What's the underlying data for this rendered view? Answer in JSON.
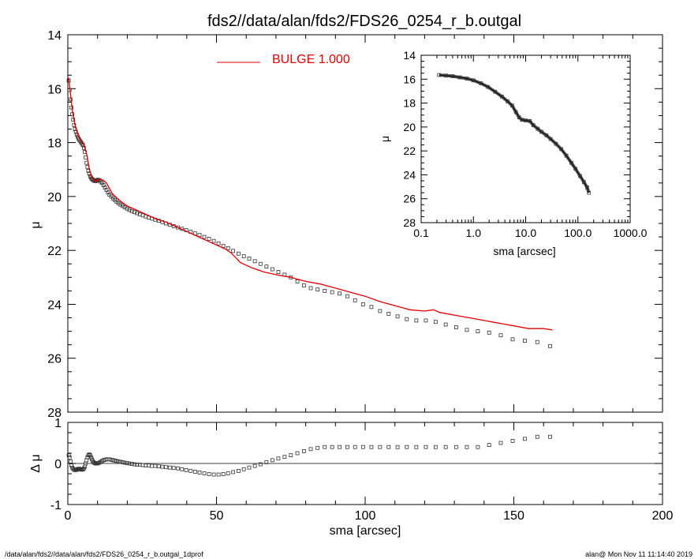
{
  "title": "fds2//data/alan/fds2/FDS26_0254_r_b.outgal",
  "footer": {
    "left": "/data/alan/fds2//data/alan/fds2/FDS26_0254_r_b.outgal_1dprof",
    "right": "alan@  Mon Nov 11 11:14:40 2019"
  },
  "colors": {
    "model": "#e00000",
    "data": "#000000",
    "residual": "#000000"
  },
  "chart_data": [
    {
      "id": "main",
      "type": "line",
      "title": "fds2//data/alan/fds2/FDS26_0254_r_b.outgal",
      "xlabel": "",
      "ylabel": "μ",
      "xlim": [
        0,
        200
      ],
      "ylim": [
        28,
        14
      ],
      "y_inverted": true,
      "xticks": [
        "",
        "",
        "",
        "",
        ""
      ],
      "yticks": [
        "14",
        "16",
        "18",
        "20",
        "22",
        "24",
        "26",
        "28"
      ],
      "ytick_values": [
        14,
        16,
        18,
        20,
        22,
        24,
        26,
        28
      ],
      "legend": [
        {
          "label": "BULGE  1.000",
          "color": "#e00000",
          "placement": "top-center"
        }
      ],
      "series": [
        {
          "name": "BULGE  1.000",
          "style": "line",
          "x": [
            0.3,
            0.8,
            1.5,
            2.5,
            3.5,
            4.5,
            5.5,
            6.5,
            7.0,
            7.5,
            8.0,
            8.5,
            9.0,
            9.5,
            10.0,
            11,
            12,
            13,
            14,
            15,
            16,
            18,
            20,
            22,
            24,
            26,
            28,
            30,
            33,
            36,
            40,
            45,
            50,
            53,
            55,
            58,
            62,
            66,
            70,
            75,
            80,
            85,
            90,
            95,
            100,
            105,
            110,
            115,
            120,
            123,
            125,
            130,
            135,
            140,
            145,
            150,
            155,
            160,
            163
          ],
          "y": [
            15.6,
            16.1,
            16.8,
            17.4,
            17.75,
            17.95,
            18.1,
            18.5,
            18.85,
            19.1,
            19.25,
            19.35,
            19.4,
            19.45,
            19.4,
            19.35,
            19.4,
            19.5,
            19.7,
            19.9,
            20.0,
            20.2,
            20.35,
            20.45,
            20.55,
            20.65,
            20.75,
            20.85,
            20.95,
            21.1,
            21.3,
            21.55,
            21.8,
            21.95,
            22.1,
            22.45,
            22.65,
            22.8,
            22.9,
            23.0,
            23.15,
            23.25,
            23.4,
            23.55,
            23.7,
            23.9,
            24.05,
            24.2,
            24.25,
            24.2,
            24.3,
            24.4,
            24.5,
            24.6,
            24.7,
            24.8,
            24.9,
            24.9,
            24.95
          ]
        },
        {
          "name": "",
          "style": "square-markers",
          "x": [
            0.3,
            0.6,
            0.9,
            1.2,
            1.5,
            1.8,
            2.1,
            2.4,
            2.7,
            3.0,
            3.3,
            3.6,
            3.9,
            4.2,
            4.5,
            4.8,
            5.1,
            5.4,
            5.7,
            6.0,
            6.3,
            6.6,
            6.9,
            7.2,
            7.5,
            7.8,
            8.1,
            8.4,
            8.7,
            9.0,
            9.3,
            9.6,
            9.9,
            10.2,
            10.6,
            11.0,
            11.5,
            12.0,
            12.5,
            13.0,
            13.5,
            14.0,
            14.6,
            15.2,
            15.8,
            16.4,
            17.0,
            17.7,
            18.4,
            19.1,
            19.9,
            20.7,
            21.5,
            22.4,
            23.3,
            24.2,
            25.2,
            26.2,
            27.2,
            28.3,
            29.4,
            30.6,
            31.8,
            33.0,
            34.3,
            35.6,
            37.0,
            38.4,
            39.8,
            41.3,
            42.8,
            44.3,
            45.9,
            47.5,
            49.1,
            50.7,
            52.3,
            53.9,
            55.6,
            57.4,
            59.2,
            61.0,
            62.9,
            64.8,
            66.8,
            68.8,
            70.8,
            72.9,
            75.0,
            77.2,
            79.4,
            81.7,
            84.0,
            86.4,
            88.9,
            91.4,
            94.0,
            96.6,
            99.3,
            102.1,
            105.0,
            107.9,
            110.9,
            114.0,
            117.2,
            120.4,
            123.7,
            127.1,
            130.6,
            134.2,
            137.9,
            141.7,
            145.6,
            149.6,
            153.7,
            157.9,
            162.2
          ],
          "y": [
            15.7,
            16.05,
            16.4,
            16.7,
            16.95,
            17.15,
            17.35,
            17.5,
            17.6,
            17.7,
            17.78,
            17.85,
            17.9,
            17.95,
            18.0,
            18.05,
            18.1,
            18.2,
            18.35,
            18.55,
            18.75,
            18.9,
            19.05,
            19.15,
            19.25,
            19.3,
            19.35,
            19.38,
            19.4,
            19.42,
            19.43,
            19.42,
            19.4,
            19.38,
            19.4,
            19.45,
            19.5,
            19.58,
            19.67,
            19.76,
            19.85,
            19.93,
            20.0,
            20.07,
            20.13,
            20.19,
            20.25,
            20.3,
            20.35,
            20.4,
            20.45,
            20.5,
            20.54,
            20.58,
            20.62,
            20.66,
            20.7,
            20.74,
            20.78,
            20.82,
            20.86,
            20.9,
            20.95,
            21.0,
            21.05,
            21.1,
            21.15,
            21.2,
            21.25,
            21.31,
            21.37,
            21.43,
            21.5,
            21.57,
            21.65,
            21.74,
            21.83,
            21.92,
            22.02,
            22.12,
            22.22,
            22.3,
            22.4,
            22.5,
            22.6,
            22.7,
            22.8,
            22.9,
            23.0,
            23.15,
            23.3,
            23.4,
            23.45,
            23.5,
            23.55,
            23.6,
            23.7,
            23.85,
            24.0,
            24.1,
            24.25,
            24.35,
            24.45,
            24.55,
            24.6,
            24.6,
            24.65,
            24.75,
            24.85,
            24.95,
            25.0,
            25.05,
            25.15,
            25.3,
            25.35,
            25.4,
            25.55
          ]
        }
      ]
    },
    {
      "id": "residual",
      "type": "scatter",
      "xlabel": "sma [arcsec]",
      "ylabel": "Δ μ",
      "xlim": [
        0,
        200
      ],
      "ylim": [
        -1,
        1
      ],
      "xticks": [
        "0",
        "50",
        "100",
        "150",
        "200"
      ],
      "xtick_values": [
        0,
        50,
        100,
        150,
        200
      ],
      "yticks": [
        "-1",
        "0",
        "1"
      ],
      "ytick_values": [
        -1,
        0,
        1
      ],
      "zero_line": true,
      "series": [
        {
          "name": "",
          "style": "square-markers",
          "x": [
            0.3,
            0.6,
            0.9,
            1.2,
            1.5,
            1.8,
            2.1,
            2.4,
            2.7,
            3.0,
            3.3,
            3.6,
            3.9,
            4.2,
            4.5,
            4.8,
            5.1,
            5.4,
            5.7,
            6.0,
            6.3,
            6.6,
            6.9,
            7.2,
            7.5,
            7.8,
            8.1,
            8.4,
            8.7,
            9.0,
            9.3,
            9.6,
            9.9,
            10.2,
            10.6,
            11.0,
            11.5,
            12.0,
            12.5,
            13.0,
            13.5,
            14.0,
            14.6,
            15.2,
            15.8,
            16.4,
            17.0,
            17.7,
            18.4,
            19.1,
            19.9,
            20.7,
            21.5,
            22.4,
            23.3,
            24.2,
            25.2,
            26.2,
            27.2,
            28.3,
            29.4,
            30.6,
            31.8,
            33.0,
            34.3,
            35.6,
            37.0,
            38.4,
            39.8,
            41.3,
            42.8,
            44.3,
            45.9,
            47.5,
            49.1,
            50.7,
            52.3,
            53.9,
            55.6,
            57.4,
            59.2,
            61.0,
            62.9,
            64.8,
            66.8,
            68.8,
            70.8,
            72.9,
            75.0,
            77.2,
            79.4,
            81.7,
            84.0,
            86.4,
            88.9,
            91.4,
            94.0,
            96.6,
            99.3,
            102.1,
            105.0,
            107.9,
            110.9,
            114.0,
            117.2,
            120.4,
            123.7,
            127.1,
            130.6,
            134.2,
            137.9,
            141.7,
            145.6,
            149.6,
            153.7,
            157.9,
            162.2
          ],
          "y": [
            0.2,
            0.15,
            0.05,
            -0.05,
            -0.1,
            -0.13,
            -0.15,
            -0.16,
            -0.16,
            -0.15,
            -0.14,
            -0.13,
            -0.13,
            -0.14,
            -0.15,
            -0.15,
            -0.14,
            -0.12,
            -0.08,
            0.0,
            0.08,
            0.15,
            0.2,
            0.22,
            0.2,
            0.15,
            0.1,
            0.06,
            0.03,
            0.01,
            0.0,
            0.0,
            0.0,
            0.01,
            0.02,
            0.04,
            0.06,
            0.08,
            0.09,
            0.1,
            0.1,
            0.1,
            0.09,
            0.08,
            0.07,
            0.06,
            0.05,
            0.04,
            0.03,
            0.02,
            0.01,
            0.0,
            -0.01,
            -0.02,
            -0.03,
            -0.03,
            -0.04,
            -0.05,
            -0.05,
            -0.06,
            -0.06,
            -0.07,
            -0.08,
            -0.09,
            -0.1,
            -0.11,
            -0.12,
            -0.14,
            -0.16,
            -0.18,
            -0.2,
            -0.22,
            -0.24,
            -0.26,
            -0.27,
            -0.27,
            -0.26,
            -0.24,
            -0.21,
            -0.18,
            -0.14,
            -0.1,
            -0.06,
            -0.02,
            0.03,
            0.08,
            0.12,
            0.16,
            0.2,
            0.25,
            0.3,
            0.35,
            0.38,
            0.4,
            0.4,
            0.4,
            0.4,
            0.4,
            0.4,
            0.4,
            0.4,
            0.4,
            0.4,
            0.4,
            0.4,
            0.4,
            0.4,
            0.4,
            0.4,
            0.4,
            0.4,
            0.45,
            0.5,
            0.55,
            0.6,
            0.65,
            0.65
          ]
        }
      ]
    },
    {
      "id": "inset",
      "type": "scatter",
      "xlabel": "sma [arcsec]",
      "ylabel": "μ",
      "x_scale": "log",
      "xlim": [
        0.1,
        1000
      ],
      "ylim": [
        28,
        14
      ],
      "y_inverted": true,
      "xticks": [
        "0.1",
        "1.0",
        "10.0",
        "100.0",
        "1000.0"
      ],
      "xtick_values": [
        0.1,
        1,
        10,
        100,
        1000
      ],
      "yticks": [
        "14",
        "16",
        "18",
        "20",
        "22",
        "24",
        "26",
        "28"
      ],
      "ytick_values": [
        14,
        16,
        18,
        20,
        22,
        24,
        26,
        28
      ],
      "series": [
        {
          "name": "",
          "style": "square-markers",
          "x": [
            0.22,
            0.3,
            0.4,
            0.55,
            0.75,
            1.0,
            1.4,
            1.9,
            2.6,
            3.5,
            4.5,
            5.5,
            6.5,
            7.5,
            8.5,
            10,
            12,
            14,
            17,
            20,
            25,
            30,
            38,
            48,
            60,
            75,
            90,
            110,
            130,
            150,
            162
          ],
          "y": [
            15.65,
            15.7,
            15.75,
            15.85,
            15.95,
            16.1,
            16.35,
            16.65,
            17.05,
            17.45,
            17.85,
            18.2,
            18.75,
            19.2,
            19.4,
            19.45,
            19.5,
            19.85,
            20.15,
            20.4,
            20.7,
            21.0,
            21.4,
            21.85,
            22.4,
            23.0,
            23.5,
            24.1,
            24.6,
            25.05,
            25.5
          ]
        }
      ]
    }
  ]
}
